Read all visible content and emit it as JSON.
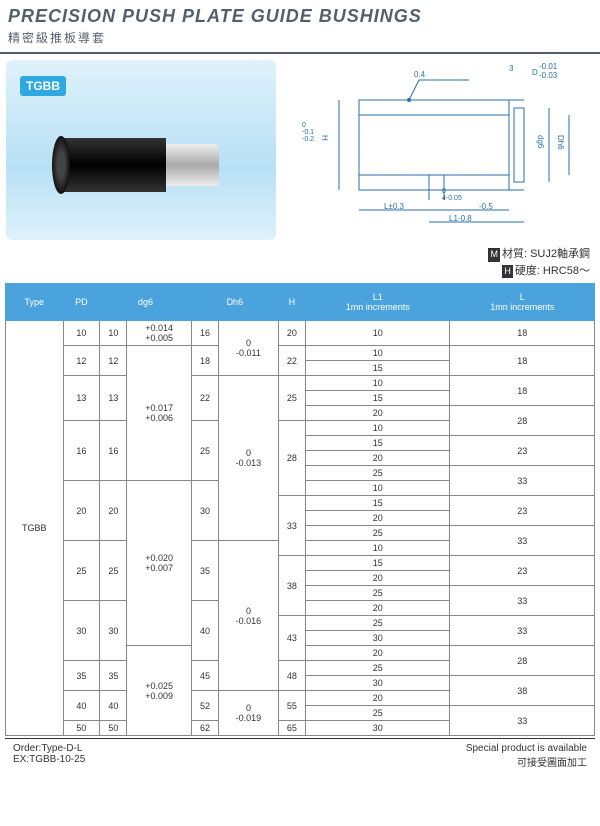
{
  "header": {
    "title_en": "PRECISION  PUSH PLATE GUIDE BUSHINGS",
    "title_cn": "精密級推板導套"
  },
  "badge": "TGBB",
  "drawing_labels": {
    "top_04": "0.4",
    "top_3": "3",
    "tol_d": "-0.01\n-0.03",
    "D_label": "D",
    "H_label": "H",
    "H_tol": "0\n-0.1\n-0.2",
    "dg6": "dg6",
    "Dh6": "Dh6",
    "bot_4": "0\n4-0.05",
    "bot_05": "-0.5",
    "bot_l1": "L1-0.8",
    "bot_l": "L±0.3"
  },
  "material": {
    "mat_label": "M",
    "mat_text": "材質: SUJ2軸承鋼",
    "hard_label": "H",
    "hard_text": "硬度: HRC58～"
  },
  "table": {
    "headers": [
      "Type",
      "PD",
      "dg6",
      "Dh6",
      "H",
      "L1\n1mn increments",
      "L\n1mn increments"
    ],
    "type_label": "TGBB",
    "dg6_tols": [
      "+0.014\n+0.005",
      "+0.017\n+0.006",
      "+0.020\n+0.007",
      "+0.025\n+0.009"
    ],
    "dh6_tols": [
      "0\n-0.011",
      "0\n-0.013",
      "0\n-0.016",
      "0\n-0.019"
    ],
    "rows": [
      {
        "pd": "10",
        "dg": "10",
        "dh": "16",
        "h": "20",
        "l1": "10",
        "l": "18"
      },
      {
        "pd": "12",
        "dg": "12",
        "dh": "18",
        "h": "22",
        "l1": "10",
        "l": "18"
      },
      {
        "l1": "15"
      },
      {
        "pd": "13",
        "dg": "13",
        "dh": "22",
        "h": "25",
        "l1": "10",
        "l": "18"
      },
      {
        "l1": "15"
      },
      {
        "l1": "20",
        "l": "28"
      },
      {
        "pd": "16",
        "dg": "16",
        "dh": "25",
        "h": "28",
        "l1": "10"
      },
      {
        "l1": "15",
        "l": "23"
      },
      {
        "l1": "20"
      },
      {
        "l1": "25",
        "l": "33"
      },
      {
        "pd": "20",
        "dg": "20",
        "dh": "30",
        "l1": "10"
      },
      {
        "h": "33",
        "l1": "15",
        "l": "23"
      },
      {
        "l1": "20"
      },
      {
        "l1": "25",
        "l": "33"
      },
      {
        "pd": "25",
        "dg": "25",
        "dh": "35",
        "l1": "10"
      },
      {
        "h": "38",
        "l1": "15",
        "l": "23"
      },
      {
        "l1": "20"
      },
      {
        "l1": "25",
        "l": "33"
      },
      {
        "pd": "30",
        "dg": "30",
        "dh": "40",
        "l1": "20"
      },
      {
        "h": "43",
        "l1": "25",
        "l": "33"
      },
      {
        "l1": "30"
      },
      {
        "l1": "20",
        "l": "28"
      },
      {
        "pd": "35",
        "dg": "35",
        "dh": "45",
        "h": "48",
        "l1": "25"
      },
      {
        "l1": "30",
        "l": "38"
      },
      {
        "pd": "40",
        "dg": "40",
        "dh": "52",
        "h": "55",
        "l1": "20"
      },
      {
        "l1": "25",
        "l": "33"
      },
      {
        "pd": "50",
        "dg": "50",
        "dh": "62",
        "h": "65",
        "l1": "30"
      }
    ]
  },
  "footer": {
    "order": "Order:Type-D-L",
    "ex": "EX:TGBB-10-25",
    "special_en": "Special product is available",
    "special_cn": "可接受圖面加工"
  },
  "colors": {
    "header_bg": "#4aa3dd",
    "line": "#2a6fa8"
  }
}
